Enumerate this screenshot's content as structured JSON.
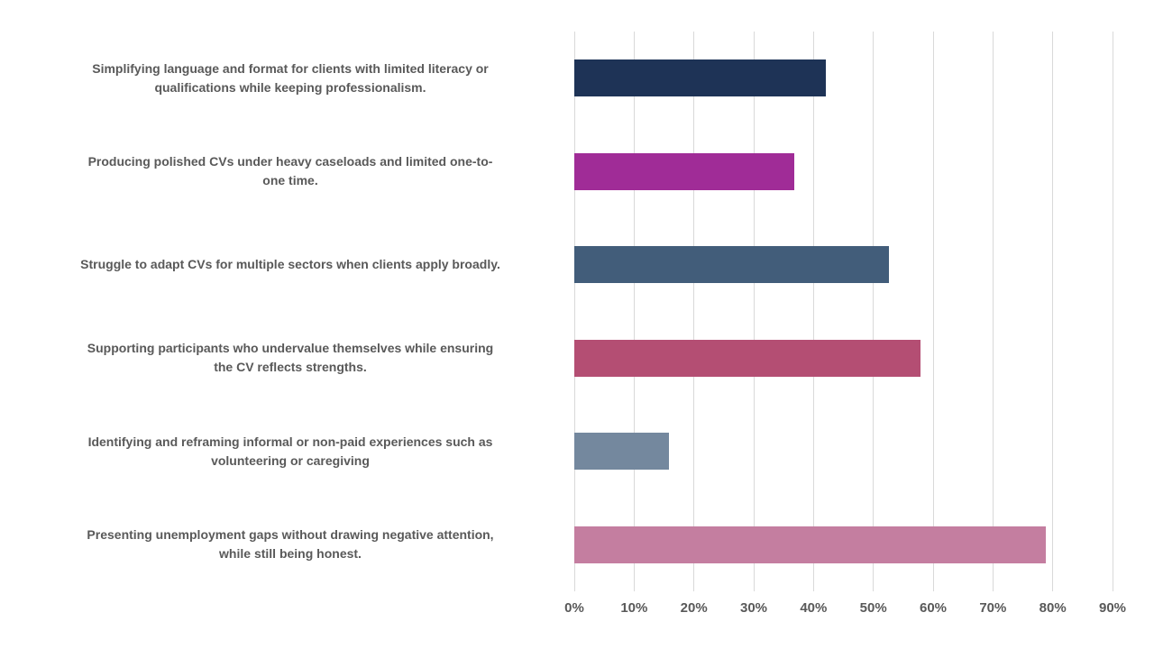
{
  "chart_data": {
    "type": "bar",
    "orientation": "horizontal",
    "title": "",
    "xlabel": "",
    "ylabel": "",
    "unit": "%",
    "xlim": [
      0,
      90
    ],
    "grid": true,
    "legend": false,
    "background_color": "#FFFFFF",
    "gridline_color": "#D9D9D9",
    "text_color": "#595959",
    "categories": [
      "Simplifying language and format for clients with limited literacy or qualifications while keeping professionalism.",
      "Producing polished CVs under heavy caseloads and limited one-to-one time.",
      "Struggle to adapt CVs for multiple sectors when clients apply broadly.",
      "Supporting participants who undervalue themselves while ensuring the CV reflects strengths.",
      "Identifying and reframing informal or non-paid experiences such as volunteering or caregiving",
      "Presenting unemployment gaps without drawing negative attention, while still being honest."
    ],
    "category_lines": [
      [
        "Simplifying language and format for clients with limited literacy or",
        "qualifications while keeping professionalism."
      ],
      [
        "Producing polished CVs under heavy caseloads and limited one-to-",
        "one time."
      ],
      [
        "Struggle to adapt CVs for multiple sectors when clients apply broadly."
      ],
      [
        "Supporting participants who undervalue themselves while ensuring",
        "the CV reflects strengths."
      ],
      [
        "Identifying and reframing informal or non-paid experiences such as",
        "volunteering or caregiving"
      ],
      [
        "Presenting unemployment gaps without drawing negative attention,",
        "while still being honest."
      ]
    ],
    "values": [
      42.1,
      36.8,
      52.6,
      57.9,
      15.8,
      78.9
    ],
    "bar_colors": [
      "#1E3356",
      "#A02C97",
      "#425D7A",
      "#B44E73",
      "#74889E",
      "#C47EA0"
    ],
    "tick_values": [
      0,
      10,
      20,
      30,
      40,
      50,
      60,
      70,
      80,
      90
    ],
    "tick_labels": [
      "0%",
      "10%",
      "20%",
      "30%",
      "40%",
      "50%",
      "60%",
      "70%",
      "80%",
      "90%"
    ]
  }
}
